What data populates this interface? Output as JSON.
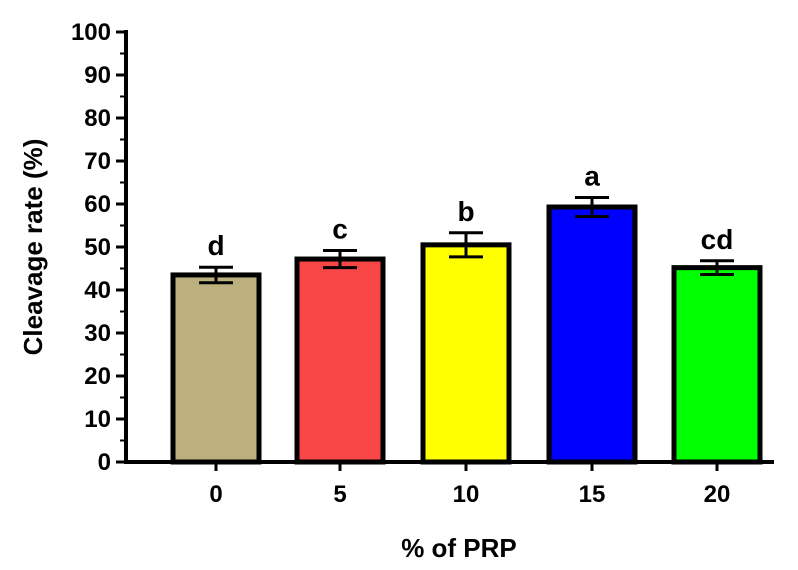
{
  "chart_data": {
    "type": "bar",
    "xlabel": "% of PRP",
    "ylabel": "Cleavage rate (%)",
    "ylim": [
      0,
      100
    ],
    "yticks": [
      0,
      10,
      20,
      30,
      40,
      50,
      60,
      70,
      80,
      90,
      100
    ],
    "categories": [
      "0",
      "5",
      "10",
      "15",
      "20"
    ],
    "values": [
      43.5,
      47.2,
      50.5,
      59.3,
      45.2
    ],
    "errors": [
      1.8,
      2.0,
      2.8,
      2.2,
      1.6
    ],
    "significance_labels": [
      "d",
      "c",
      "b",
      "a",
      "cd"
    ],
    "colors": [
      "#BCB07E",
      "#F84545",
      "#FFFF00",
      "#0000FF",
      "#00FF00"
    ],
    "grid": false,
    "legend": "none"
  }
}
